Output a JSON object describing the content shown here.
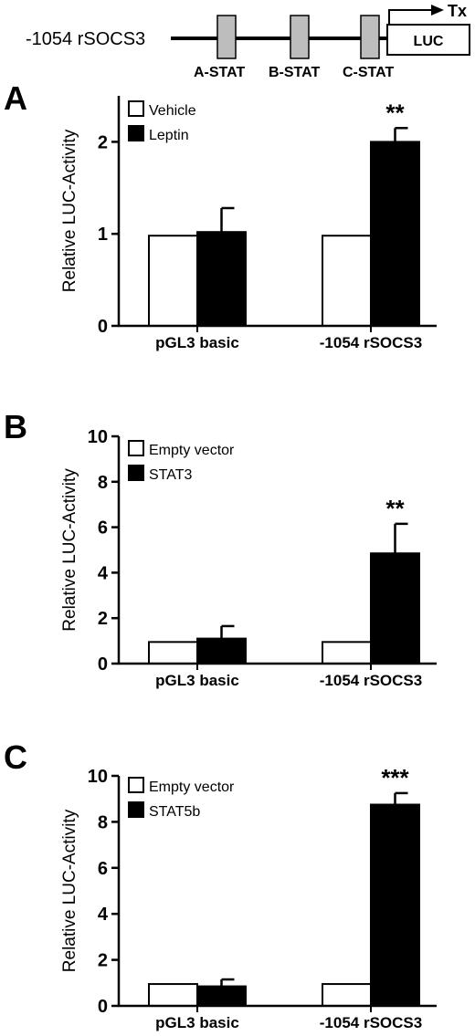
{
  "construct": {
    "name": "-1054 rSOCS3",
    "sites": [
      "A-STAT",
      "B-STAT",
      "C-STAT"
    ],
    "reporter": "LUC",
    "tx_label": "Tx"
  },
  "chart_data": [
    {
      "type": "bar",
      "panel_label": "A",
      "categories": [
        "pGL3 basic",
        "-1054 rSOCS3"
      ],
      "ylabel": "Relative LUC-Activity",
      "ylim": [
        0,
        2.5
      ],
      "yticks": [
        0,
        1,
        2
      ],
      "legend_position": "top-left",
      "series": [
        {
          "name": "Vehicle",
          "color": "#ffffff",
          "values": [
            0.98,
            0.98
          ],
          "errors": [
            0,
            0
          ]
        },
        {
          "name": "Leptin",
          "color": "#000000",
          "values": [
            1.02,
            2.0
          ],
          "errors": [
            0.26,
            0.15
          ]
        }
      ],
      "significance": [
        {
          "category": "-1054 rSOCS3",
          "series": "Leptin",
          "label": "**"
        }
      ]
    },
    {
      "type": "bar",
      "panel_label": "B",
      "categories": [
        "pGL3 basic",
        "-1054 rSOCS3"
      ],
      "ylabel": "Relative LUC-Activity",
      "ylim": [
        0,
        10
      ],
      "yticks": [
        0,
        2,
        4,
        6,
        8,
        10
      ],
      "legend_position": "top-left",
      "series": [
        {
          "name": "Empty vector",
          "color": "#ffffff",
          "values": [
            0.95,
            0.95
          ],
          "errors": [
            0,
            0
          ]
        },
        {
          "name": "STAT3",
          "color": "#000000",
          "values": [
            1.1,
            4.85
          ],
          "errors": [
            0.55,
            1.3
          ]
        }
      ],
      "significance": [
        {
          "category": "-1054 rSOCS3",
          "series": "STAT3",
          "label": "**"
        }
      ]
    },
    {
      "type": "bar",
      "panel_label": "C",
      "categories": [
        "pGL3 basic",
        "-1054 rSOCS3"
      ],
      "ylabel": "Relative LUC-Activity",
      "ylim": [
        0,
        10
      ],
      "yticks": [
        0,
        2,
        4,
        6,
        8,
        10
      ],
      "legend_position": "top-left",
      "series": [
        {
          "name": "Empty vector",
          "color": "#ffffff",
          "values": [
            0.95,
            0.95
          ],
          "errors": [
            0,
            0
          ]
        },
        {
          "name": "STAT5b",
          "color": "#000000",
          "values": [
            0.85,
            8.75
          ],
          "errors": [
            0.3,
            0.5
          ]
        }
      ],
      "significance": [
        {
          "category": "-1054 rSOCS3",
          "series": "STAT5b",
          "label": "***"
        }
      ]
    }
  ]
}
